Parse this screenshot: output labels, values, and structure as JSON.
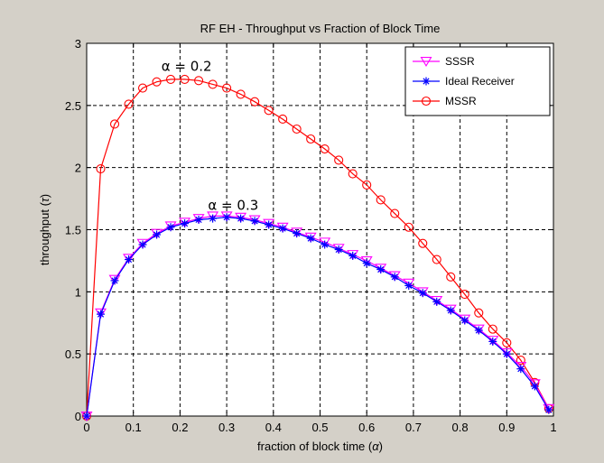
{
  "chart_data": {
    "type": "line",
    "title": "RF EH - Throughput vs Fraction of Block Time",
    "xlabel_text": "fraction of block time (",
    "xlabel_symbol": "α",
    "xlabel_close": ")",
    "ylabel_text": "throughput (",
    "ylabel_symbol": "τ",
    "ylabel_close": ")",
    "xlim": [
      0,
      1
    ],
    "ylim": [
      0,
      3
    ],
    "xticks": [
      0,
      0.1,
      0.2,
      0.3,
      0.4,
      0.5,
      0.6,
      0.7,
      0.8,
      0.9,
      1
    ],
    "yticks": [
      0,
      0.5,
      1,
      1.5,
      2,
      2.5,
      3
    ],
    "xtick_labels": [
      "0",
      "0.1",
      "0.2",
      "0.3",
      "0.4",
      "0.5",
      "0.6",
      "0.7",
      "0.8",
      "0.9",
      "1"
    ],
    "ytick_labels": [
      "0",
      "0.5",
      "1",
      "1.5",
      "2",
      "2.5",
      "3"
    ],
    "grid": true,
    "legend_position": "top-right",
    "x": [
      0,
      0.03,
      0.06,
      0.09,
      0.12,
      0.15,
      0.18,
      0.21,
      0.24,
      0.27,
      0.3,
      0.33,
      0.36,
      0.39,
      0.42,
      0.45,
      0.48,
      0.51,
      0.54,
      0.57,
      0.6,
      0.63,
      0.66,
      0.69,
      0.72,
      0.75,
      0.78,
      0.81,
      0.84,
      0.87,
      0.9,
      0.93,
      0.96,
      0.99
    ],
    "series": [
      {
        "name": "SSSR",
        "color": "#ff00ff",
        "marker": "triangle-down",
        "values": [
          0,
          0.83,
          1.1,
          1.27,
          1.39,
          1.47,
          1.53,
          1.56,
          1.59,
          1.61,
          1.61,
          1.6,
          1.58,
          1.55,
          1.52,
          1.48,
          1.44,
          1.4,
          1.35,
          1.3,
          1.25,
          1.19,
          1.13,
          1.07,
          1.0,
          0.93,
          0.86,
          0.78,
          0.7,
          0.61,
          0.51,
          0.4,
          0.26,
          0.06
        ]
      },
      {
        "name": "Ideal Receiver",
        "color": "#0000ff",
        "marker": "star",
        "values": [
          0,
          0.82,
          1.09,
          1.26,
          1.38,
          1.46,
          1.52,
          1.55,
          1.58,
          1.59,
          1.6,
          1.59,
          1.57,
          1.54,
          1.51,
          1.47,
          1.43,
          1.38,
          1.34,
          1.29,
          1.23,
          1.18,
          1.12,
          1.05,
          0.99,
          0.92,
          0.85,
          0.77,
          0.69,
          0.6,
          0.5,
          0.38,
          0.24,
          0.05
        ]
      },
      {
        "name": "MSSR",
        "color": "#ff0000",
        "marker": "circle",
        "values": [
          0,
          1.99,
          2.35,
          2.51,
          2.64,
          2.69,
          2.71,
          2.71,
          2.7,
          2.67,
          2.64,
          2.59,
          2.53,
          2.46,
          2.39,
          2.31,
          2.23,
          2.15,
          2.06,
          1.95,
          1.86,
          1.74,
          1.63,
          1.52,
          1.39,
          1.26,
          1.12,
          0.98,
          0.83,
          0.7,
          0.59,
          0.45,
          0.27,
          0.06
        ]
      }
    ],
    "annotations": [
      {
        "text": "α = 0.2",
        "x": 0.16,
        "y": 2.78
      },
      {
        "text": "α = 0.3",
        "x": 0.26,
        "y": 1.66
      }
    ]
  }
}
